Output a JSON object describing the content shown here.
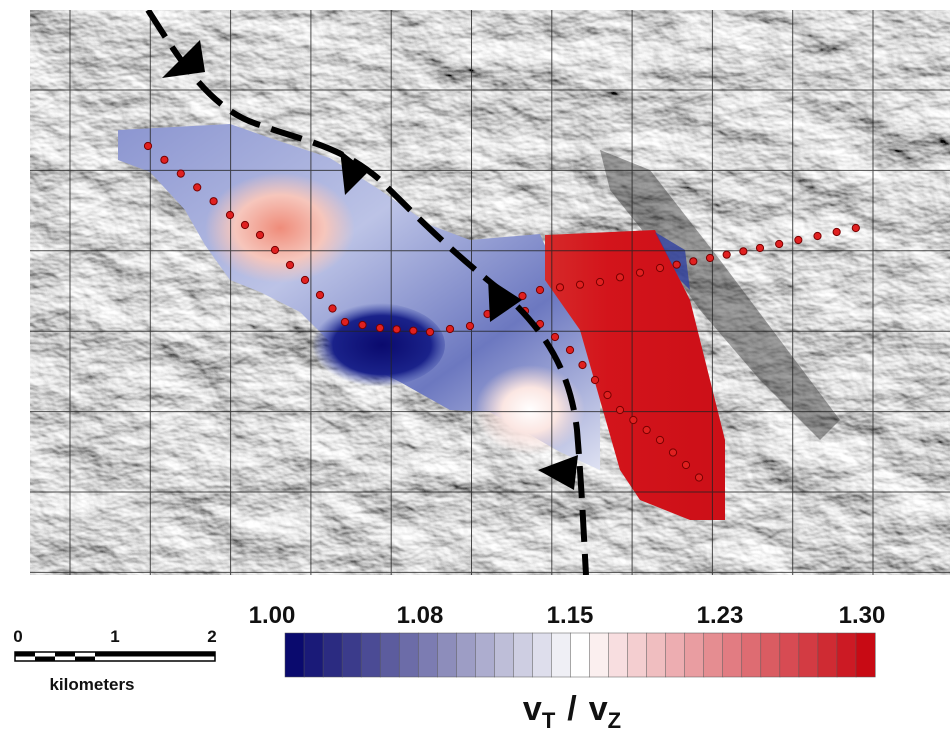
{
  "colorbar": {
    "ticks": [
      "1.00",
      "1.08",
      "1.15",
      "1.23",
      "1.30"
    ],
    "label": [
      "v",
      "T",
      "/",
      "v",
      "Z"
    ]
  },
  "scale_bar": {
    "ticks": [
      "0",
      "1",
      "2"
    ],
    "unit": "kilometers"
  }
}
